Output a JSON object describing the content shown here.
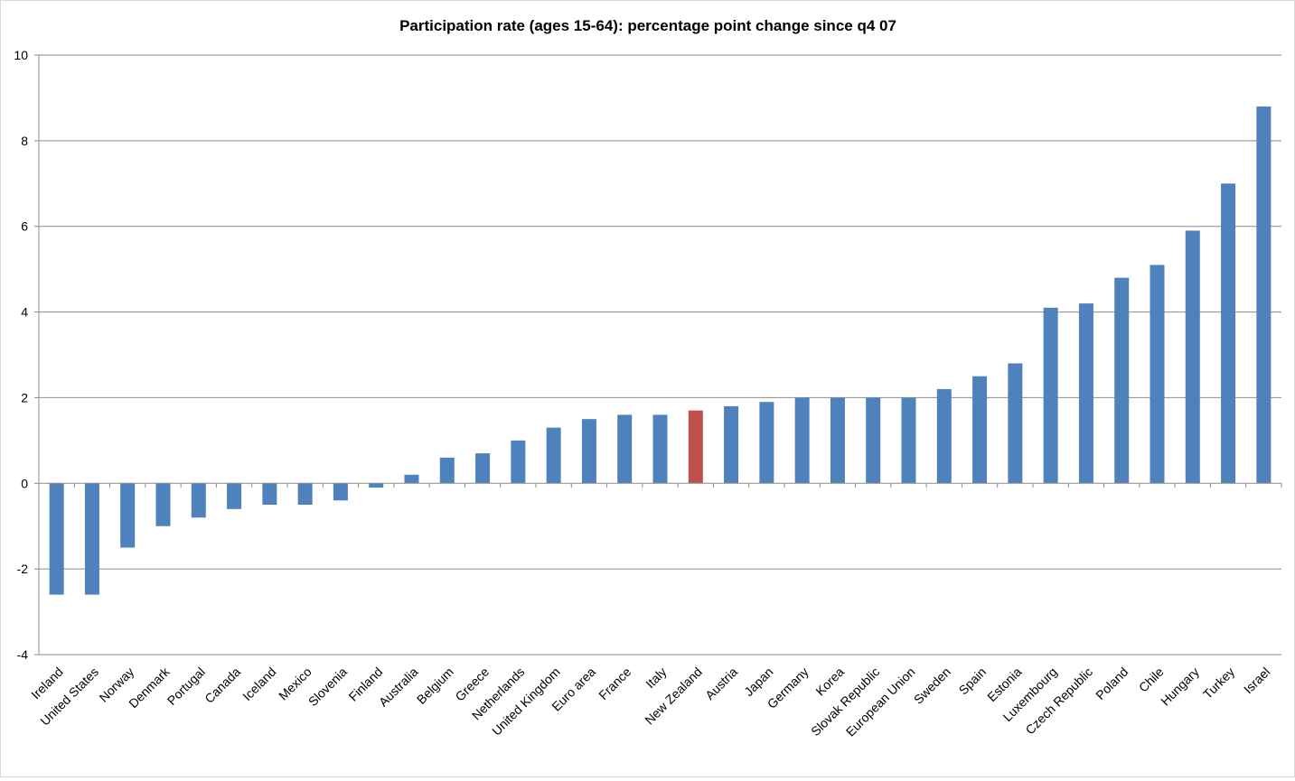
{
  "chart_data": {
    "type": "bar",
    "title": "Participation rate (ages 15-64):  percentage point change since q4 07",
    "xlabel": "",
    "ylabel": "",
    "ylim": [
      -4,
      10
    ],
    "yticks": [
      -4,
      -2,
      0,
      2,
      4,
      6,
      8,
      10
    ],
    "yticklabels": [
      "-4",
      "-2",
      "0",
      "2",
      "4",
      "6",
      "8",
      "10"
    ],
    "grid": true,
    "legend": "none",
    "colors": {
      "default_bar": "#4f81bd",
      "highlight_bar": "#c0504d",
      "gridline": "#8c8c8c",
      "axis": "#8c8c8c"
    },
    "highlight_category": "New Zealand",
    "categories": [
      "Ireland",
      "United States",
      "Norway",
      "Denmark",
      "Portugal",
      "Canada",
      "Iceland",
      "Mexico",
      "Slovenia",
      "Finland",
      "Australia",
      "Belgium",
      "Greece",
      "Netherlands",
      "United Kingdom",
      "Euro area",
      "France",
      "Italy",
      "New Zealand",
      "Austria",
      "Japan",
      "Germany",
      "Korea",
      "Slovak Republic",
      "European Union",
      "Sweden",
      "Spain",
      "Estonia",
      "Luxembourg",
      "Czech Republic",
      "Poland",
      "Chile",
      "Hungary",
      "Turkey",
      "Israel"
    ],
    "values": [
      -2.6,
      -2.6,
      -1.5,
      -1.0,
      -0.8,
      -0.6,
      -0.5,
      -0.5,
      -0.4,
      -0.1,
      0.2,
      0.6,
      0.7,
      1.0,
      1.3,
      1.5,
      1.6,
      1.6,
      1.7,
      1.8,
      1.9,
      2.0,
      2.0,
      2.0,
      2.0,
      2.2,
      2.5,
      2.8,
      4.1,
      4.2,
      4.8,
      5.1,
      5.9,
      7.0,
      8.8
    ]
  }
}
